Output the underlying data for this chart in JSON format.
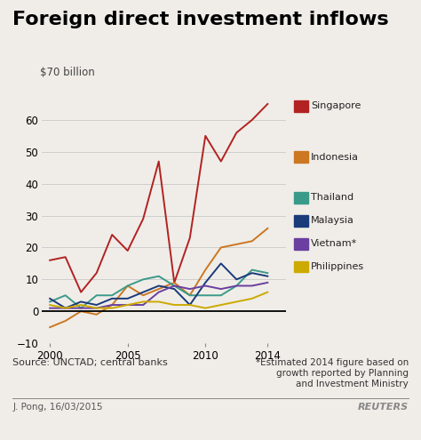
{
  "title": "Foreign direct investment inflows",
  "ylabel": "$70 billion",
  "ylim": [
    -10,
    70
  ],
  "yticks": [
    -10,
    0,
    10,
    20,
    30,
    40,
    50,
    60
  ],
  "xlim": [
    1999.5,
    2015.2
  ],
  "xticks": [
    2000,
    2005,
    2010,
    2014
  ],
  "background_color": "#f0ede8",
  "series": {
    "Singapore": {
      "color": "#b22222",
      "data": {
        "2000": 16,
        "2001": 17,
        "2002": 6,
        "2003": 12,
        "2004": 24,
        "2005": 19,
        "2006": 29,
        "2007": 47,
        "2008": 9,
        "2009": 23,
        "2010": 55,
        "2011": 47,
        "2012": 56,
        "2013": 60,
        "2014": 65
      }
    },
    "Indonesia": {
      "color": "#cc7722",
      "data": {
        "2000": -5,
        "2001": -3,
        "2002": 0,
        "2003": -1,
        "2004": 2,
        "2005": 8,
        "2006": 5,
        "2007": 7,
        "2008": 9,
        "2009": 5,
        "2010": 13,
        "2011": 20,
        "2012": 21,
        "2013": 22,
        "2014": 26
      }
    },
    "Thailand": {
      "color": "#3a9a8a",
      "data": {
        "2000": 3,
        "2001": 5,
        "2002": 1,
        "2003": 5,
        "2004": 5,
        "2005": 8,
        "2006": 10,
        "2007": 11,
        "2008": 8,
        "2009": 5,
        "2010": 5,
        "2011": 5,
        "2012": 8,
        "2013": 13,
        "2014": 12
      }
    },
    "Malaysia": {
      "color": "#1a3a7a",
      "data": {
        "2000": 4,
        "2001": 1,
        "2002": 3,
        "2003": 2,
        "2004": 4,
        "2005": 4,
        "2006": 6,
        "2007": 8,
        "2008": 7,
        "2009": 2,
        "2010": 9,
        "2011": 15,
        "2012": 10,
        "2013": 12,
        "2014": 11
      }
    },
    "Vietnam": {
      "color": "#6a3fa0",
      "data": {
        "2000": 1,
        "2001": 1,
        "2002": 1,
        "2003": 1,
        "2004": 2,
        "2005": 2,
        "2006": 2,
        "2007": 6,
        "2008": 8,
        "2009": 7,
        "2010": 8,
        "2011": 7,
        "2012": 8,
        "2013": 8,
        "2014": 9
      }
    },
    "Philippines": {
      "color": "#ccaa00",
      "data": {
        "2000": 2,
        "2001": 1,
        "2002": 2,
        "2003": 1,
        "2004": 1,
        "2005": 2,
        "2006": 3,
        "2007": 3,
        "2008": 2,
        "2009": 2,
        "2010": 1,
        "2011": 2,
        "2012": 3,
        "2013": 4,
        "2014": 6
      }
    }
  },
  "legend_order": [
    "Singapore",
    "Indonesia",
    "Thailand",
    "Malaysia",
    "Vietnam",
    "Philippines"
  ],
  "legend_labels": {
    "Singapore": "Singapore",
    "Indonesia": "Indonesia",
    "Thailand": "Thailand",
    "Malaysia": "Malaysia",
    "Vietnam": "Vietnam*",
    "Philippines": "Philippines"
  },
  "source_text": "Source: UNCTAD; central banks",
  "footnote_line1": "*Estimated 2014 figure based on",
  "footnote_line2": "growth reported by Planning",
  "footnote_line3": "and Investment Ministry",
  "credit_left": "J. Pong, 16/03/2015",
  "credit_right": "REUTERS"
}
